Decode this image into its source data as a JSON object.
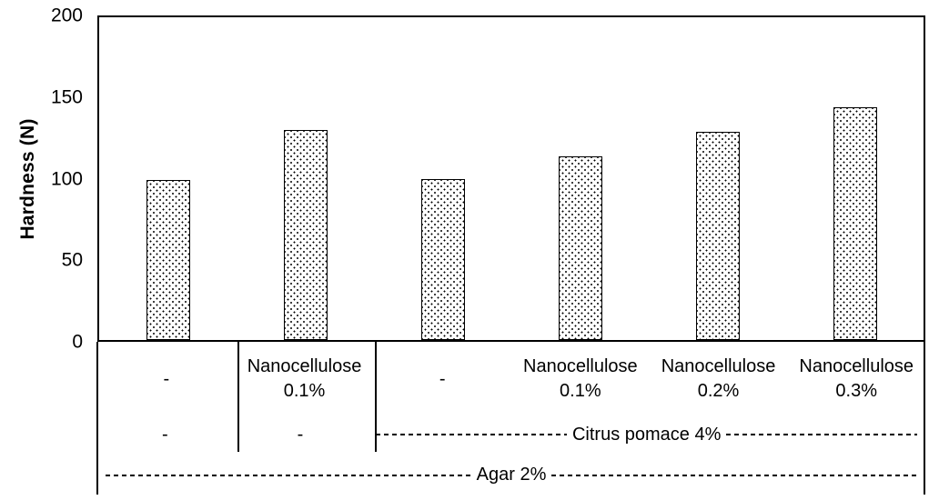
{
  "chart_data": {
    "type": "bar",
    "title": "",
    "ylabel": "Hardness (N)",
    "xlabel": "",
    "ylim": [
      0,
      200
    ],
    "yticks": [
      0,
      50,
      100,
      150,
      200
    ],
    "grid": false,
    "legend_position": "none",
    "bar_style": {
      "fill": "#ffffff",
      "pattern": "black-dot-lattice",
      "border_color": "#000000"
    },
    "values": [
      99,
      130,
      100,
      114,
      129,
      144
    ],
    "categories": [
      [
        "-"
      ],
      [
        "Nanocellulose",
        "0.1%"
      ],
      [
        "-"
      ],
      [
        "Nanocellulose",
        "0.1%"
      ],
      [
        "Nanocellulose",
        "0.2%"
      ],
      [
        "Nanocellulose",
        "0.3%"
      ]
    ],
    "group_rows": [
      {
        "cells": [
          {
            "label": "-",
            "span": 1,
            "dashed": false
          },
          {
            "label": "-",
            "span": 1,
            "dashed": false
          },
          {
            "label": "Citrus pomace 4%",
            "span": 4,
            "dashed": true
          }
        ]
      },
      {
        "cells": [
          {
            "label": "Agar 2%",
            "span": 6,
            "dashed": true
          }
        ]
      }
    ]
  },
  "colors": {
    "axis": "#000000",
    "text": "#000000",
    "background": "#ffffff"
  }
}
